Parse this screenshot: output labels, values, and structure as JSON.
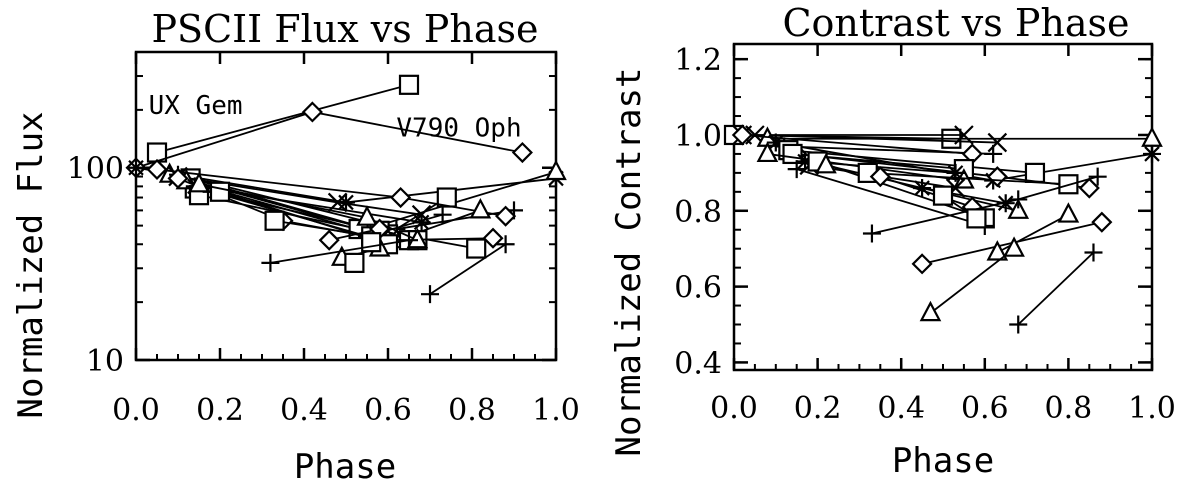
{
  "chart_data": [
    {
      "type": "scatter",
      "title": "PSCII Flux vs Phase",
      "xlabel": "Phase",
      "ylabel": "Normalized Flux",
      "xlim": [
        0.0,
        1.0
      ],
      "ylim": [
        10,
        400
      ],
      "yscale": "log",
      "xticks": [
        "0.0",
        "0.2",
        "0.4",
        "0.6",
        "0.8",
        "1.0"
      ],
      "xtick_values": [
        0.0,
        0.2,
        0.4,
        0.6,
        0.8,
        1.0
      ],
      "yticks": [
        "10",
        "100"
      ],
      "ytick_values": [
        10,
        100
      ],
      "annotations": [
        {
          "text": "UX Gem",
          "x": 0.03,
          "y": 190
        },
        {
          "text": "V790 Oph",
          "x": 0.62,
          "y": 145
        }
      ],
      "segments": [
        {
          "m": "square",
          "pts": [
            [
              0.05,
              120
            ],
            [
              0.65,
              270
            ]
          ]
        },
        {
          "m": "diamond",
          "pts": [
            [
              0.0,
              100
            ],
            [
              0.42,
              195
            ],
            [
              0.92,
              120
            ]
          ]
        },
        {
          "m": "asterisk",
          "pts": [
            [
              0.0,
              100
            ],
            [
              0.5,
              66
            ],
            [
              1.0,
              88
            ]
          ]
        },
        {
          "m": "triangle",
          "pts": [
            [
              0.08,
              92
            ],
            [
              0.55,
              48
            ],
            [
              1.0,
              95
            ]
          ]
        },
        {
          "m": "plus",
          "pts": [
            [
              0.1,
              92
            ],
            [
              0.62,
              48
            ],
            [
              0.9,
              60
            ]
          ]
        },
        {
          "m": "square",
          "pts": [
            [
              0.13,
              88
            ],
            [
              0.6,
              45
            ],
            [
              0.74,
              70
            ]
          ]
        },
        {
          "m": "diamond",
          "pts": [
            [
              0.05,
              98
            ],
            [
              0.63,
              70
            ],
            [
              0.88,
              56
            ]
          ]
        },
        {
          "m": "cross",
          "pts": [
            [
              0.1,
              90
            ],
            [
              0.48,
              66
            ],
            [
              0.68,
              57
            ]
          ]
        },
        {
          "m": "square",
          "pts": [
            [
              0.14,
              78
            ],
            [
              0.58,
              47
            ],
            [
              0.81,
              38
            ]
          ]
        },
        {
          "m": "triangle",
          "pts": [
            [
              0.12,
              85
            ],
            [
              0.62,
              42
            ],
            [
              0.82,
              60
            ]
          ]
        },
        {
          "m": "asterisk",
          "pts": [
            [
              0.14,
              80
            ],
            [
              0.68,
              52
            ]
          ]
        },
        {
          "m": "square",
          "pts": [
            [
              0.15,
              72
            ],
            [
              0.53,
              48
            ],
            [
              0.67,
              42
            ]
          ]
        },
        {
          "m": "plus",
          "pts": [
            [
              0.18,
              75
            ],
            [
              0.55,
              44
            ],
            [
              0.73,
              57
            ]
          ]
        },
        {
          "m": "diamond",
          "pts": [
            [
              0.1,
              88
            ],
            [
              0.35,
              53
            ],
            [
              0.6,
              42
            ],
            [
              0.85,
              43
            ]
          ]
        },
        {
          "m": "square",
          "pts": [
            [
              0.2,
              75
            ],
            [
              0.6,
              40
            ],
            [
              0.65,
              42
            ]
          ]
        },
        {
          "m": "triangle",
          "pts": [
            [
              0.15,
              82
            ],
            [
              0.55,
              55
            ],
            [
              0.67,
              42
            ]
          ]
        },
        {
          "m": "square",
          "pts": [
            [
              0.33,
              53
            ],
            [
              0.56,
              44
            ]
          ]
        },
        {
          "m": "diamond",
          "pts": [
            [
              0.46,
              42
            ],
            [
              0.58,
              48
            ]
          ]
        },
        {
          "m": "triangle",
          "pts": [
            [
              0.49,
              34
            ],
            [
              0.58,
              38
            ]
          ]
        },
        {
          "m": "square",
          "pts": [
            [
              0.52,
              32
            ],
            [
              0.56,
              41
            ]
          ]
        },
        {
          "m": "plus",
          "pts": [
            [
              0.32,
              32
            ],
            [
              0.65,
              42
            ]
          ]
        },
        {
          "m": "plus",
          "pts": [
            [
              0.7,
              22
            ],
            [
              0.88,
              40
            ]
          ]
        }
      ]
    },
    {
      "type": "scatter",
      "title": "Contrast vs Phase",
      "xlabel": "Phase",
      "ylabel": "Normalized Contrast",
      "xlim": [
        0.0,
        1.0
      ],
      "ylim": [
        0.38,
        1.24
      ],
      "xticks": [
        "0.0",
        "0.2",
        "0.4",
        "0.6",
        "0.8",
        "1.0"
      ],
      "xtick_values": [
        0.0,
        0.2,
        0.4,
        0.6,
        0.8,
        1.0
      ],
      "yticks": [
        "0.4",
        "0.6",
        "0.8",
        "1.0",
        "1.2"
      ],
      "ytick_values": [
        0.4,
        0.6,
        0.8,
        1.0,
        1.2
      ],
      "segments": [
        {
          "m": "square",
          "pts": [
            [
              0.0,
              1.0
            ],
            [
              0.52,
              0.99
            ]
          ]
        },
        {
          "m": "cross",
          "pts": [
            [
              0.02,
              1.0
            ],
            [
              0.55,
              1.0
            ]
          ]
        },
        {
          "m": "cross",
          "pts": [
            [
              0.05,
              1.0
            ],
            [
              0.63,
              0.98
            ]
          ]
        },
        {
          "m": "triangle",
          "pts": [
            [
              0.08,
              0.99
            ],
            [
              1.0,
              0.99
            ]
          ]
        },
        {
          "m": "asterisk",
          "pts": [
            [
              0.1,
              0.98
            ],
            [
              0.62,
              0.88
            ],
            [
              1.0,
              0.95
            ]
          ]
        },
        {
          "m": "plus",
          "pts": [
            [
              0.12,
              0.97
            ],
            [
              0.62,
              0.95
            ]
          ]
        },
        {
          "m": "diamond",
          "pts": [
            [
              0.02,
              1.0
            ],
            [
              0.57,
              0.95
            ]
          ]
        },
        {
          "m": "square",
          "pts": [
            [
              0.13,
              0.96
            ],
            [
              0.72,
              0.9
            ]
          ]
        },
        {
          "m": "diamond",
          "pts": [
            [
              0.15,
              0.95
            ],
            [
              0.63,
              0.89
            ],
            [
              0.85,
              0.86
            ]
          ]
        },
        {
          "m": "square",
          "pts": [
            [
              0.14,
              0.95
            ],
            [
              0.55,
              0.91
            ]
          ]
        },
        {
          "m": "triangle",
          "pts": [
            [
              0.08,
              0.95
            ],
            [
              0.55,
              0.88
            ]
          ]
        },
        {
          "m": "asterisk",
          "pts": [
            [
              0.17,
              0.93
            ],
            [
              0.53,
              0.9
            ]
          ]
        },
        {
          "m": "cross",
          "pts": [
            [
              0.18,
              0.92
            ],
            [
              0.53,
              0.86
            ]
          ]
        },
        {
          "m": "square",
          "pts": [
            [
              0.2,
              0.93
            ],
            [
              0.6,
              0.78
            ]
          ]
        },
        {
          "m": "triangle",
          "pts": [
            [
              0.22,
              0.92
            ],
            [
              0.68,
              0.8
            ]
          ]
        },
        {
          "m": "plus",
          "pts": [
            [
              0.15,
              0.91
            ],
            [
              0.6,
              0.76
            ]
          ]
        },
        {
          "m": "square",
          "pts": [
            [
              0.32,
              0.9
            ],
            [
              0.8,
              0.87
            ]
          ]
        },
        {
          "m": "diamond",
          "pts": [
            [
              0.35,
              0.89
            ],
            [
              0.57,
              0.81
            ]
          ]
        },
        {
          "m": "asterisk",
          "pts": [
            [
              0.45,
              0.86
            ],
            [
              0.65,
              0.82
            ]
          ]
        },
        {
          "m": "plus",
          "pts": [
            [
              0.33,
              0.74
            ],
            [
              0.68,
              0.83
            ],
            [
              0.87,
              0.89
            ]
          ]
        },
        {
          "m": "square",
          "pts": [
            [
              0.5,
              0.84
            ],
            [
              0.58,
              0.78
            ]
          ]
        },
        {
          "m": "diamond",
          "pts": [
            [
              0.45,
              0.66
            ],
            [
              0.88,
              0.77
            ]
          ]
        },
        {
          "m": "triangle",
          "pts": [
            [
              0.63,
              0.69
            ],
            [
              0.8,
              0.79
            ]
          ]
        },
        {
          "m": "triangle",
          "pts": [
            [
              0.47,
              0.53
            ],
            [
              0.67,
              0.7
            ]
          ]
        },
        {
          "m": "plus",
          "pts": [
            [
              0.68,
              0.5
            ],
            [
              0.86,
              0.69
            ]
          ]
        }
      ]
    }
  ]
}
